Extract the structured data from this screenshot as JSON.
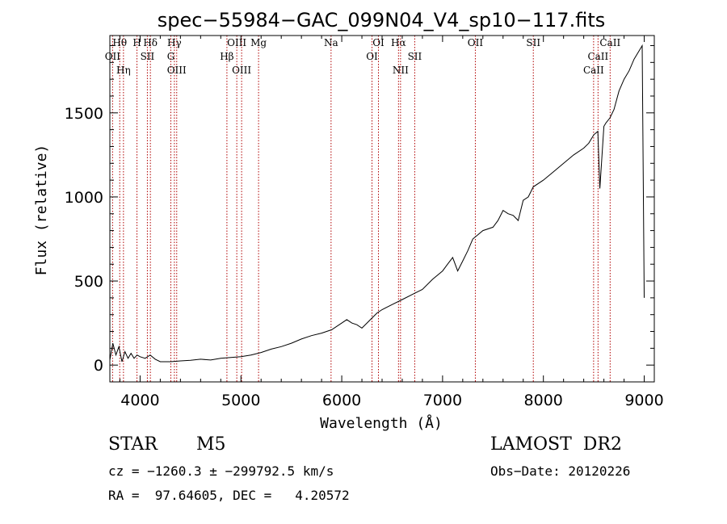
{
  "chart_data": {
    "type": "line",
    "title": "spec−55984−GAC_099N04_V4_sp10−117.fits",
    "xlabel": "Wavelength (Å)",
    "ylabel": "Flux (relative)",
    "xlim": [
      3700,
      9100
    ],
    "ylim": [
      -100,
      1960
    ],
    "xticks": [
      4000,
      5000,
      6000,
      7000,
      8000,
      9000
    ],
    "yticks": [
      0,
      500,
      1000,
      1500
    ],
    "series": [
      {
        "x": [
          3700,
          3730,
          3760,
          3790,
          3820,
          3850,
          3880,
          3910,
          3940,
          3970,
          4000,
          4050,
          4100,
          4150,
          4200,
          4300,
          4400,
          4500,
          4600,
          4700,
          4800,
          4900,
          5000,
          5100,
          5200,
          5300,
          5400,
          5500,
          5600,
          5700,
          5800,
          5900,
          6000,
          6050,
          6100,
          6150,
          6200,
          6250,
          6300,
          6350,
          6400,
          6500,
          6600,
          6700,
          6800,
          6900,
          7000,
          7050,
          7100,
          7150,
          7200,
          7250,
          7300,
          7400,
          7500,
          7550,
          7600,
          7650,
          7700,
          7750,
          7800,
          7850,
          7900,
          8000,
          8100,
          8200,
          8300,
          8400,
          8450,
          8500,
          8540,
          8560,
          8600,
          8620,
          8660,
          8700,
          8750,
          8800,
          8850,
          8900,
          8950,
          8980,
          9000
        ],
        "y": [
          30,
          130,
          60,
          110,
          20,
          80,
          40,
          70,
          40,
          60,
          50,
          40,
          60,
          35,
          20,
          20,
          25,
          28,
          35,
          30,
          40,
          45,
          50,
          60,
          75,
          95,
          110,
          130,
          155,
          175,
          190,
          210,
          250,
          270,
          250,
          240,
          220,
          250,
          280,
          310,
          330,
          360,
          390,
          420,
          450,
          510,
          560,
          600,
          640,
          560,
          620,
          680,
          750,
          800,
          820,
          860,
          920,
          900,
          890,
          860,
          980,
          1000,
          1060,
          1100,
          1150,
          1200,
          1250,
          1290,
          1320,
          1370,
          1390,
          1050,
          1420,
          1440,
          1470,
          1520,
          1630,
          1700,
          1750,
          1820,
          1870,
          1900,
          400
        ]
      }
    ],
    "lines": [
      {
        "label": "Hθ",
        "x": 3798
      },
      {
        "label": "OII",
        "x": 3727
      },
      {
        "label": "Hη",
        "x": 3835
      },
      {
        "label": "H",
        "x": 3969
      },
      {
        "label": "SII",
        "x": 4072
      },
      {
        "label": "Hδ",
        "x": 4102
      },
      {
        "label": "Hγ",
        "x": 4340
      },
      {
        "label": "G",
        "x": 4305
      },
      {
        "label": "OIII",
        "x": 4363
      },
      {
        "label": "OIII",
        "x": 4959
      },
      {
        "label": "Hβ",
        "x": 4861
      },
      {
        "label": "OIII",
        "x": 5007
      },
      {
        "label": "Mg",
        "x": 5175
      },
      {
        "label": "Na",
        "x": 5894
      },
      {
        "label": "OI",
        "x": 6364
      },
      {
        "label": "OI",
        "x": 6300
      },
      {
        "label": "Hα",
        "x": 6563
      },
      {
        "label": "SII",
        "x": 6724
      },
      {
        "label": "NII",
        "x": 6583
      },
      {
        "label": "OII",
        "x": 7325
      },
      {
        "label": "SII",
        "x": 7900
      },
      {
        "label": "CaII",
        "x": 8662
      },
      {
        "label": "CaII",
        "x": 8542
      },
      {
        "label": "CaII",
        "x": 8498
      }
    ],
    "grid": false,
    "legend": "none",
    "line_color": "#000000",
    "marker_color": "#b00000"
  },
  "info": {
    "class": "STAR",
    "subclass": "M5",
    "survey": "LAMOST  DR2",
    "cz": "cz = −1260.3 ± −299792.5 km/s",
    "obs_date": "Obs−Date: 20120226",
    "radec": "RA =  97.64605, DEC =   4.20572"
  }
}
